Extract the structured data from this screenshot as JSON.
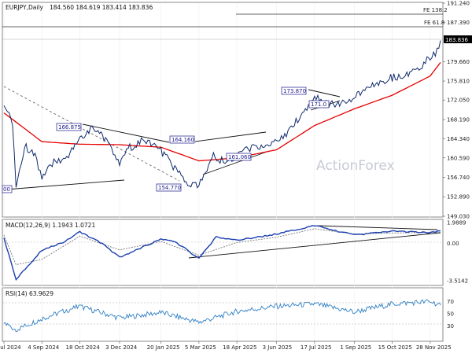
{
  "header": {
    "symbol": "EURJPY,Daily",
    "ohlc": "184.560 184.619 183.414 183.836"
  },
  "watermark": "ActionForex",
  "colors": {
    "price": "#0f2a6b",
    "ma": "#e60000",
    "macd": "#1a3fb0",
    "signal": "#666666",
    "rsi": "#2f7fc4",
    "trendline": "#111111",
    "fib": "#222222",
    "grid": "#d9d9d9",
    "label_fill": "#ffffff",
    "label_stroke": "#1a1a8c",
    "price_tag": "#000000"
  },
  "annotations": {
    "fe_138": "FE 138.2",
    "fe_618": "FE 61.8",
    "price_tag": "183.836",
    "lbl_156": "00",
    "lbl_166875": "166.875",
    "lbl_164160": "164.160",
    "lbl_154770": "154.770",
    "lbl_161060": "161.060",
    "lbl_173870": "173.870",
    "lbl_171": "171.0"
  },
  "chart_data": [
    {
      "type": "line",
      "title": "EURJPY,Daily",
      "x_tick_labels": [
        "22 Jul 2024",
        "4 Sep 2024",
        "18 Oct 2024",
        "3 Dec 2024",
        "20 Jan 2025",
        "5 Mar 2025",
        "18 Apr 2025",
        "3 Jun 2025",
        "17 Jul 2025",
        "1 Sep 2025",
        "15 Oct 2025",
        "28 Nov 2025"
      ],
      "y_tick_labels": [
        "191.240",
        "187.390",
        "183.836",
        "179.660",
        "175.810",
        "172.050",
        "168.190",
        "164.340",
        "160.590",
        "156.740",
        "152.890",
        "149.030"
      ],
      "ylim": [
        149.03,
        191.24
      ],
      "series": [
        {
          "x": [
            "22 Jul 2024",
            "1 Aug 2024",
            "5 Aug 2024",
            "15 Aug 2024",
            "27 Aug 2024",
            "4 Sep 2024",
            "16 Sep 2024",
            "1 Oct 2024",
            "18 Oct 2024",
            "1 Nov 2024",
            "15 Nov 2024",
            "3 Dec 2024",
            "13 Dec 2024",
            "1 Jan 2025",
            "20 Jan 2025",
            "5 Feb 2025",
            "20 Feb 2025",
            "5 Mar 2025",
            "20 Mar 2025",
            "8 Apr 2025",
            "18 Apr 2025",
            "5 May 2025",
            "20 May 2025",
            "3 Jun 2025",
            "20 Jun 2025",
            "1 Jul 2025",
            "17 Jul 2025",
            "1 Aug 2025",
            "15 Aug 2025",
            "1 Sep 2025",
            "15 Sep 2025",
            "1 Oct 2025",
            "15 Oct 2025",
            "1 Nov 2025",
            "15 Nov 2025",
            "28 Nov 2025",
            "4 Dec 2025",
            "10 Dec 2025"
          ],
          "values": [
            171.5,
            167.0,
            155.0,
            163.0,
            161.0,
            157.0,
            159.5,
            160.5,
            164.0,
            166.9,
            164.5,
            159.5,
            162.5,
            164.1,
            162.0,
            158.5,
            155.5,
            154.8,
            161.0,
            159.5,
            161.0,
            162.5,
            163.0,
            163.5,
            166.5,
            169.0,
            173.0,
            171.0,
            171.5,
            172.5,
            174.0,
            175.5,
            176.5,
            177.0,
            178.5,
            180.5,
            181.5,
            183.836
          ]
        },
        {
          "name": "MA",
          "x": [
            "22 Jul 2024",
            "4 Sep 2024",
            "18 Oct 2024",
            "3 Dec 2024",
            "20 Jan 2025",
            "5 Mar 2025",
            "18 Apr 2025",
            "3 Jun 2025",
            "17 Jul 2025",
            "1 Sep 2025",
            "15 Oct 2025",
            "28 Nov 2025",
            "10 Dec 2025"
          ],
          "values": [
            169.5,
            163.8,
            163.3,
            163.2,
            162.7,
            160.0,
            160.6,
            162.2,
            167.0,
            170.3,
            173.0,
            176.8,
            179.5
          ]
        }
      ]
    },
    {
      "type": "line",
      "title": "MACD(12,26,9) 1.1943 1.0721",
      "ylim": [
        -3.5142,
        1.9889
      ],
      "y_tick_labels": [
        "1.9889",
        "0.00",
        "-3.5142"
      ],
      "series": [
        {
          "name": "MACD",
          "x": [
            "22 Jul 2024",
            "5 Aug 2024",
            "4 Sep 2024",
            "1 Oct 2024",
            "18 Oct 2024",
            "13 Nov 2024",
            "3 Dec 2024",
            "20 Jan 2025",
            "5 Feb 2025",
            "5 Mar 2025",
            "25 Mar 2025",
            "18 Apr 2025",
            "3 Jun 2025",
            "17 Jul 2025",
            "1 Sep 2025",
            "15 Oct 2025",
            "28 Nov 2025",
            "10 Dec 2025"
          ],
          "values": [
            0.5,
            -3.4,
            -0.6,
            0.2,
            1.1,
            0.0,
            -1.3,
            0.4,
            0.2,
            -1.4,
            0.6,
            0.3,
            0.9,
            1.7,
            0.8,
            1.2,
            1.0,
            1.19
          ]
        },
        {
          "name": "Signal",
          "x": [
            "22 Jul 2024",
            "5 Aug 2024",
            "4 Sep 2024",
            "18 Oct 2024",
            "3 Dec 2024",
            "20 Jan 2025",
            "5 Mar 2025",
            "18 Apr 2025",
            "3 Jun 2025",
            "17 Jul 2025",
            "1 Sep 2025",
            "15 Oct 2025",
            "10 Dec 2025"
          ],
          "values": [
            0.8,
            -2.0,
            -1.5,
            0.7,
            -0.6,
            0.2,
            -1.1,
            0.1,
            0.6,
            1.4,
            0.9,
            1.0,
            1.07
          ]
        }
      ]
    },
    {
      "type": "line",
      "title": "RSI(14) 63.9629",
      "ylim": [
        0,
        100
      ],
      "y_tick_labels": [
        "70",
        "50",
        "30"
      ],
      "series": [
        {
          "name": "RSI",
          "x": [
            "22 Jul 2024",
            "5 Aug 2024",
            "4 Sep 2024",
            "1 Oct 2024",
            "18 Oct 2024",
            "3 Dec 2024",
            "20 Jan 2025",
            "5 Mar 2025",
            "18 Apr 2025",
            "3 Jun 2025",
            "17 Jul 2025",
            "1 Sep 2025",
            "15 Oct 2025",
            "28 Nov 2025",
            "10 Dec 2025"
          ],
          "values": [
            35,
            24,
            42,
            55,
            62,
            43,
            52,
            36,
            54,
            62,
            66,
            53,
            66,
            70,
            63.96
          ]
        }
      ]
    }
  ]
}
